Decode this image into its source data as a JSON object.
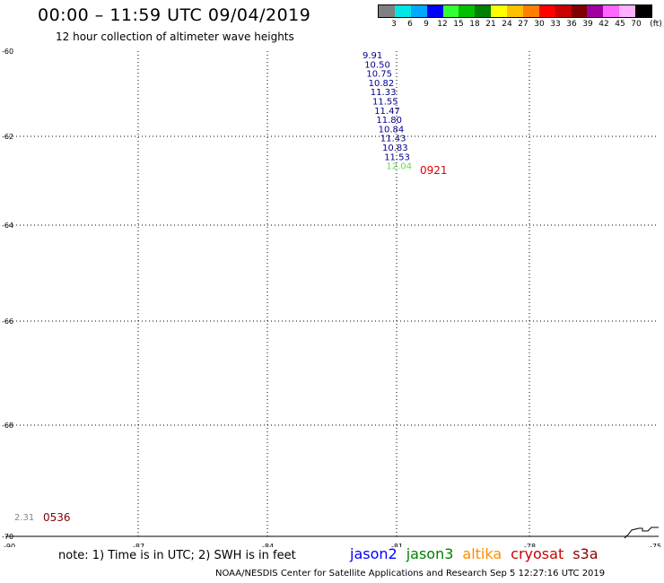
{
  "header": {
    "title": "00:00 – 11:59 UTC 09/04/2019",
    "subtitle": "12 hour collection of altimeter wave heights"
  },
  "legend": {
    "colors": [
      "#808080",
      "#00e6e6",
      "#00a8ff",
      "#0000ff",
      "#33ff33",
      "#00c000",
      "#008000",
      "#ffff00",
      "#ffc000",
      "#ff8000",
      "#ff0000",
      "#c80000",
      "#800000",
      "#a000a0",
      "#ff66ff",
      "#ffb0ff",
      "#000000"
    ],
    "labels": [
      "3",
      "6",
      "9",
      "12",
      "15",
      "18",
      "21",
      "24",
      "27",
      "30",
      "33",
      "36",
      "39",
      "42",
      "45",
      "70",
      "(ft)"
    ]
  },
  "map": {
    "lat_labels": [
      "-60",
      "-62",
      "-64",
      "-66",
      "-68",
      "-70"
    ],
    "lon_labels": [
      "-90",
      "-87",
      "-84",
      "-81",
      "-78",
      "-75"
    ],
    "observations": [
      {
        "value": "9.91",
        "color": "#00008b"
      },
      {
        "value": "10.50",
        "color": "#00008b"
      },
      {
        "value": "10.75",
        "color": "#00008b"
      },
      {
        "value": "10.82",
        "color": "#00008b"
      },
      {
        "value": "11.33",
        "color": "#00008b"
      },
      {
        "value": "11.55",
        "color": "#00008b"
      },
      {
        "value": "11.47",
        "color": "#00008b"
      },
      {
        "value": "11.80",
        "color": "#00008b"
      },
      {
        "value": "10.84",
        "color": "#00008b"
      },
      {
        "value": "11.43",
        "color": "#00008b"
      },
      {
        "value": "10.83",
        "color": "#00008b"
      },
      {
        "value": "11.53",
        "color": "#00008b"
      },
      {
        "value": "12.04",
        "color": "#66dd44"
      }
    ],
    "time_label_1": {
      "text": "0921",
      "color": "#e00000"
    },
    "obs_low": {
      "value": "2.31",
      "color": "#888888"
    },
    "time_label_2": {
      "text": "0536",
      "color": "#800000"
    }
  },
  "note": "note: 1) Time is in UTC; 2) SWH is in feet",
  "satellites": [
    {
      "name": "jason2",
      "color": "#0000ff"
    },
    {
      "name": "jason3",
      "color": "#008000"
    },
    {
      "name": "altika",
      "color": "#ff8c00"
    },
    {
      "name": "cryosat",
      "color": "#cc0000"
    },
    {
      "name": "s3a",
      "color": "#8b0000"
    }
  ],
  "footer": "NOAA/NESDIS Center for Satellite Applications and Research   Sep  5 12:27:16 UTC 2019"
}
